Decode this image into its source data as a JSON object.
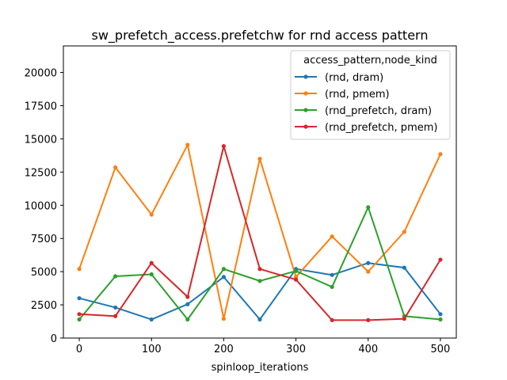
{
  "chart_data": {
    "type": "line",
    "title": "sw_prefetch_access.prefetchw for rnd access pattern",
    "xlabel": "spinloop_iterations",
    "ylabel": "",
    "xlim": [
      -22,
      522
    ],
    "ylim": [
      0,
      22000
    ],
    "xticks": [
      0,
      100,
      200,
      300,
      400,
      500
    ],
    "yticks": [
      0,
      2500,
      5000,
      7500,
      10000,
      12500,
      15000,
      17500,
      20000
    ],
    "x": [
      0,
      50,
      100,
      150,
      200,
      250,
      300,
      350,
      400,
      450,
      500
    ],
    "grid": false,
    "legend": {
      "title": "access_pattern,node_kind",
      "position": "top-right"
    },
    "series": [
      {
        "name": "(rnd, dram)",
        "color": "#1f77b4",
        "values": [
          3000,
          2300,
          1400,
          2550,
          4600,
          1400,
          5200,
          4750,
          5650,
          5300,
          1800
        ]
      },
      {
        "name": "(rnd, pmem)",
        "color": "#ff7f0e",
        "values": [
          5200,
          12850,
          9300,
          14550,
          1450,
          13500,
          4600,
          7650,
          5000,
          8000,
          13850
        ]
      },
      {
        "name": "(rnd_prefetch, dram)",
        "color": "#2ca02c",
        "values": [
          1400,
          4650,
          4800,
          1400,
          5200,
          4300,
          5050,
          3850,
          9850,
          1650,
          1400
        ]
      },
      {
        "name": "(rnd_prefetch, pmem)",
        "color": "#d62728",
        "values": [
          1800,
          1650,
          5650,
          3100,
          14450,
          5200,
          4400,
          1350,
          1350,
          1450,
          5900
        ]
      }
    ]
  }
}
